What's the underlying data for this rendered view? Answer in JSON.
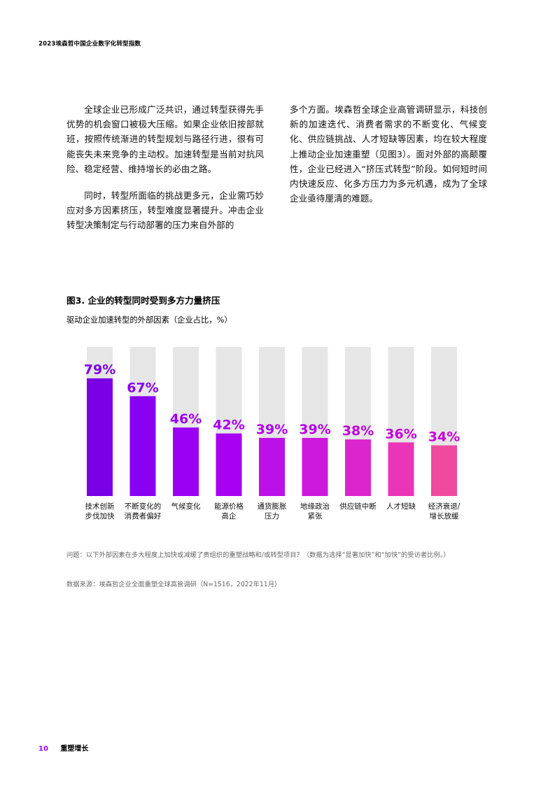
{
  "header": {
    "title": "2023埃森哲中国企业数字化转型指数"
  },
  "body": {
    "left_paragraphs": [
      "全球企业已形成广泛共识，通过转型获得先手优势的机会窗口被极大压缩。如果企业依旧按部就班，按照传统渐进的转型规划与路径行进，很有可能丧失未来竞争的主动权。加速转型是当前对抗风险、稳定经营、维持增长的必由之路。",
      "同时，转型所面临的挑战更多元，企业需巧妙应对多方因素挤压，转型难度显著提升。冲击企业转型决策制定与行动部署的压力来自外部的"
    ],
    "right_paragraphs": [
      "多个方面。埃森哲全球企业高管调研显示，科技创新的加速迭代、消费者需求的不断变化、气候变化、供应链挑战、人才短缺等因素，均在较大程度上推动企业加速重塑（见图3）。面对外部的高颠覆性，企业已经进入“挤压式转型”阶段。如何短时间内快速反应、化多方压力为多元机遇，成为了全球企业亟待厘清的难题。"
    ]
  },
  "figure": {
    "title": "图3. 企业的转型同时受到多方力量挤压",
    "subtitle": "驱动企业加速转型的外部因素（企业占比，%）",
    "question": "问题：以下外部因素在多大程度上加快或减缓了贵组织的重塑战略和/或转型项目？（数据为选择“显著加快”和“加快”的受访者比例。）",
    "source": "数据来源：埃森哲企业全面重塑全球高管调研（N=1516，2022年11月）"
  },
  "chart_data": {
    "type": "bar",
    "categories": [
      [
        "技术创新",
        "步伐加快"
      ],
      [
        "不断变化的",
        "消费者偏好"
      ],
      [
        "气候变化"
      ],
      [
        "能源价格",
        "高企"
      ],
      [
        "通货膨胀",
        "压力"
      ],
      [
        "地缘政治",
        "紧张"
      ],
      [
        "供应链中断"
      ],
      [
        "人才短缺"
      ],
      [
        "经济衰退/",
        "增长放缓"
      ]
    ],
    "values": [
      79,
      67,
      46,
      42,
      39,
      39,
      38,
      36,
      34
    ],
    "value_labels": [
      "79%",
      "67%",
      "46%",
      "42%",
      "39%",
      "39%",
      "38%",
      "36%",
      "34%"
    ],
    "ylim": [
      0,
      100
    ],
    "colors": {
      "track": "#e6e6e6",
      "bar_gradient": [
        "#7a00e6",
        "#8a00f0",
        "#9b00f5",
        "#a800f0",
        "#bb10e8",
        "#cc18dc",
        "#dd25cc",
        "#ea35b8",
        "#f04a9e"
      ],
      "label_gradient": [
        "#7a00e6",
        "#8a00f0",
        "#9b00f5",
        "#a800f0",
        "#b000ec",
        "#b800e6",
        "#c000e0",
        "#c800da",
        "#c800d6"
      ]
    }
  },
  "footer": {
    "page_number": "10",
    "section": "重塑增长"
  }
}
